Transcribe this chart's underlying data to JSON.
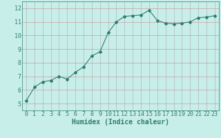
{
  "x": [
    0,
    1,
    2,
    3,
    4,
    5,
    6,
    7,
    8,
    9,
    10,
    11,
    12,
    13,
    14,
    15,
    16,
    17,
    18,
    19,
    20,
    21,
    22,
    23
  ],
  "y": [
    5.2,
    6.2,
    6.6,
    6.7,
    7.0,
    6.8,
    7.3,
    7.7,
    8.5,
    8.8,
    10.2,
    11.0,
    11.4,
    11.45,
    11.5,
    11.85,
    11.1,
    10.9,
    10.85,
    10.9,
    11.0,
    11.3,
    11.35,
    11.45
  ],
  "line_color": "#2e7d6e",
  "marker": "D",
  "marker_size": 2,
  "bg_color": "#c8eeea",
  "grid_color": "#b0b0b0",
  "xlabel": "Humidex (Indice chaleur)",
  "xlabel_fontsize": 7,
  "tick_fontsize": 6,
  "ylim": [
    4.5,
    12.5
  ],
  "xlim": [
    -0.5,
    23.5
  ],
  "yticks": [
    5,
    6,
    7,
    8,
    9,
    10,
    11,
    12
  ],
  "xticks": [
    0,
    1,
    2,
    3,
    4,
    5,
    6,
    7,
    8,
    9,
    10,
    11,
    12,
    13,
    14,
    15,
    16,
    17,
    18,
    19,
    20,
    21,
    22,
    23
  ]
}
